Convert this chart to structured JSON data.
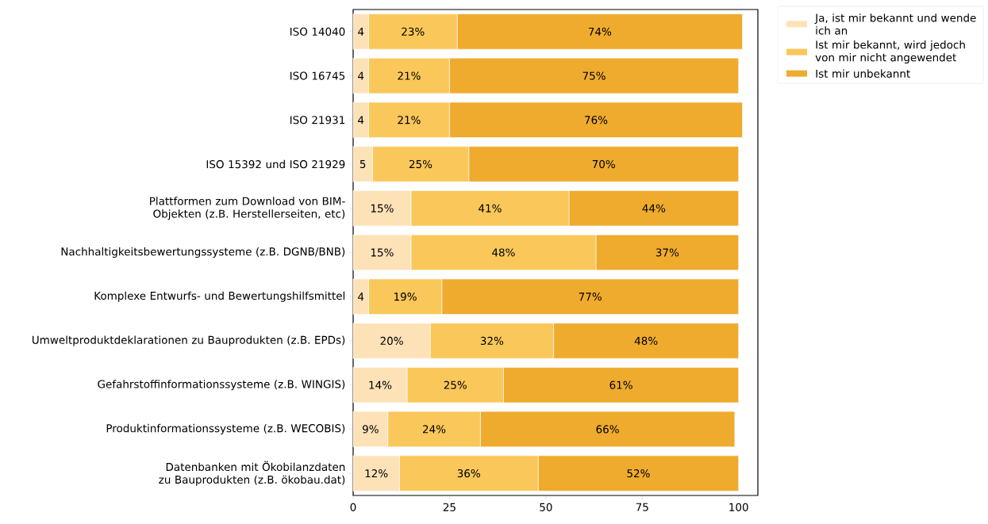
{
  "chart_data": {
    "type": "bar",
    "orientation": "horizontal",
    "stacked": true,
    "categories": [
      "ISO 14040",
      "ISO 16745",
      "ISO 21931",
      "ISO 15392 und ISO 21929",
      "Plattformen zum Download von BIM-Objekten (z.B. Herstellerseiten, etc)",
      "Nachhaltigkeitsbewertungssysteme (z.B. DGNB/BNB)",
      "Komplexe Entwurfs- und Bewertungshilfsmittel",
      "Umweltproduktdeklarationen zu Bauprodukten (z.B. EPDs)",
      "Gefahrstoffinformationssysteme (z.B. WINGIS)",
      "Produktinformationssysteme (z.B. WECOBIS)",
      "Datenbanken mit Ökobilanzdaten zu Bauprodukten (z.B. ökobau.dat)"
    ],
    "series": [
      {
        "name": "Ja, ist mir bekannt und wende ich an",
        "color": "#fde2b8",
        "values": [
          4,
          4,
          4,
          5,
          15,
          15,
          4,
          20,
          14,
          9,
          12
        ],
        "value_labels": [
          "4",
          "4",
          "4",
          "5",
          "15%",
          "15%",
          "4",
          "20%",
          "14%",
          "9%",
          "12%"
        ]
      },
      {
        "name": "Ist mir bekannt, wird jedoch von mir nicht angewendet",
        "color": "#fac75a",
        "values": [
          23,
          21,
          21,
          25,
          41,
          48,
          19,
          32,
          25,
          24,
          36
        ],
        "value_labels": [
          "23%",
          "21%",
          "21%",
          "25%",
          "41%",
          "48%",
          "19%",
          "32%",
          "25%",
          "24%",
          "36%"
        ]
      },
      {
        "name": "Ist mir unbekannt",
        "color": "#efab2d",
        "values": [
          74,
          75,
          76,
          70,
          44,
          37,
          77,
          48,
          61,
          66,
          52
        ],
        "value_labels": [
          "74%",
          "75%",
          "76%",
          "70%",
          "44%",
          "37%",
          "77%",
          "48%",
          "61%",
          "66%",
          "52%"
        ]
      }
    ],
    "xlim": [
      0,
      105
    ],
    "xticks": [
      0,
      25,
      50,
      75,
      100
    ],
    "grid": false,
    "legend": "top right"
  }
}
